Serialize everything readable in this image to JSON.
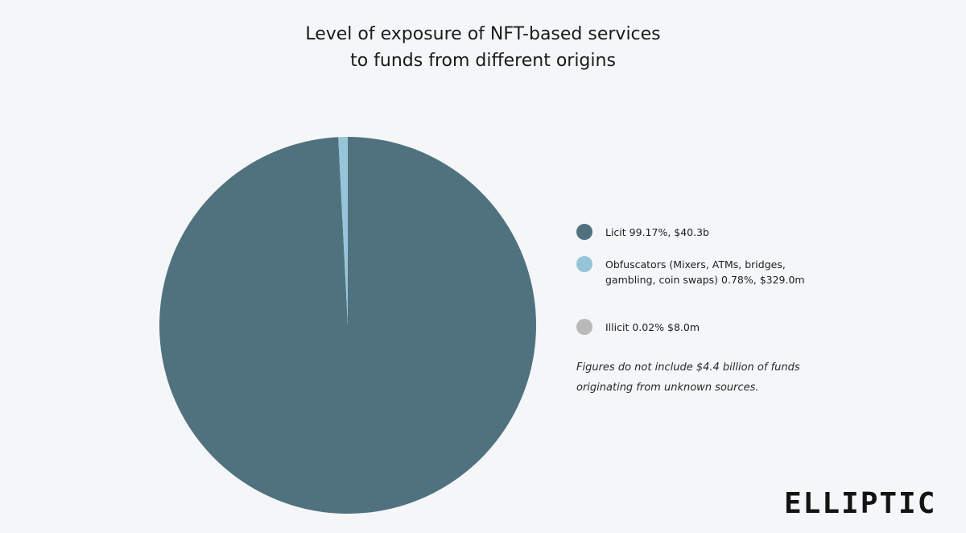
{
  "chart_data": {
    "type": "pie",
    "title": [
      "Level of exposure of NFT-based services",
      "to funds from different origins"
    ],
    "slices": [
      {
        "label": "Licit 99.17%, $40.3b",
        "category": "Licit",
        "percent": 99.17,
        "amount": "$40.3b",
        "color": "#50727f"
      },
      {
        "label": "Obfuscators (Mixers, ATMs, bridges, gambling, coin swaps) 0.78%, $329.0m",
        "label_lines": [
          "Obfuscators (Mixers, ATMs, bridges,",
          "gambling, coin swaps) 0.78%, $329.0m"
        ],
        "category": "Obfuscators (Mixers, ATMs, bridges, gambling, coin swaps)",
        "percent": 0.78,
        "amount": "$329.0m",
        "color": "#96c5d9"
      },
      {
        "label": "Illicit 0.02% $8.0m",
        "category": "Illicit",
        "percent": 0.02,
        "amount": "$8.0m",
        "color": "#b9b9b9"
      }
    ],
    "legend_position": "right"
  },
  "note": [
    "Figures do not include $4.4 billion of funds",
    "originating from unknown sources."
  ],
  "logo": "ELLIPTIC"
}
